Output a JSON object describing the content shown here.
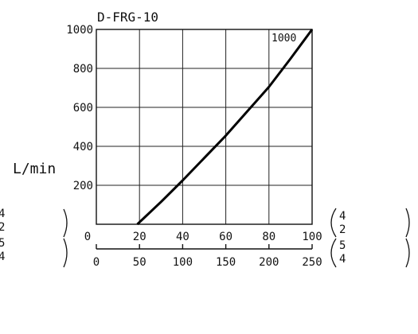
{
  "chart_data": {
    "type": "line",
    "title": "D-FRG-10",
    "ylabel": "L/min",
    "ylim": [
      0,
      1000
    ],
    "yticks": [
      "1000",
      "800",
      "600",
      "400",
      "200"
    ],
    "xlim": [
      0,
      100
    ],
    "xticks": [
      "0",
      "20",
      "40",
      "60",
      "80",
      "100"
    ],
    "x2lim": [
      0,
      250
    ],
    "x2ticks": [
      "0",
      "50",
      "100",
      "150",
      "200",
      "250"
    ],
    "series": [
      {
        "name": "1000",
        "x": [
          19,
          30,
          40,
          50,
          60,
          70,
          80,
          90,
          100
        ],
        "y": [
          0,
          115,
          225,
          340,
          455,
          580,
          705,
          850,
          1000
        ]
      }
    ],
    "brackets": {
      "row1": {
        "top": "4",
        "bottom": "2"
      },
      "row2": {
        "top": "5",
        "bottom": "4"
      }
    }
  }
}
